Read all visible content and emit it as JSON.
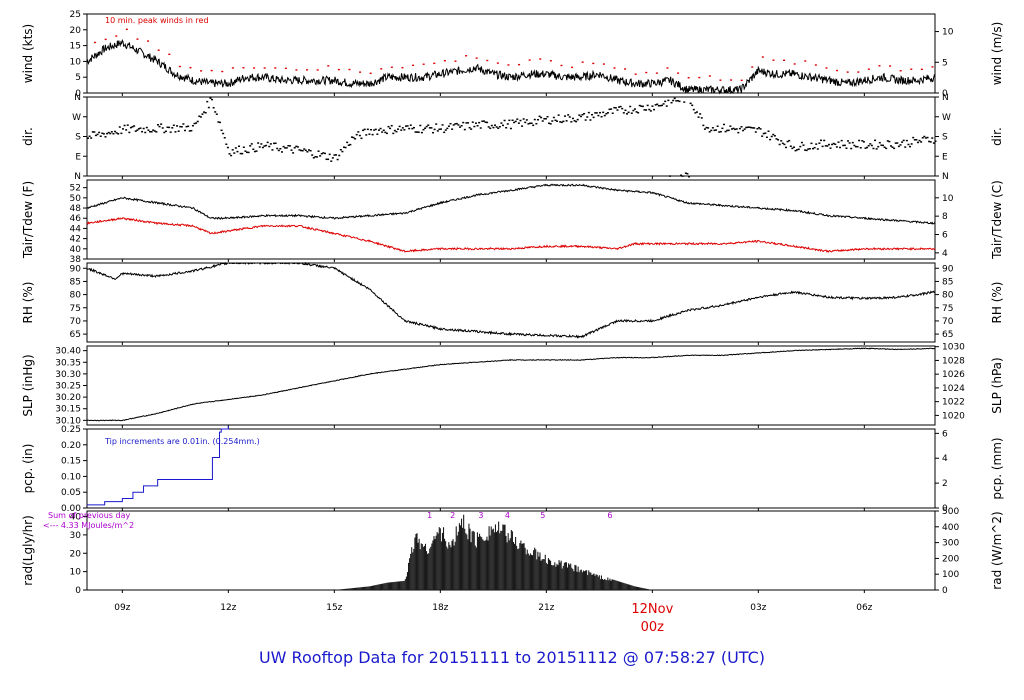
{
  "footer": {
    "title_prefix": "UW Rooftop Data for",
    "start": "20151111",
    "sep": "to",
    "end": "20151112",
    "at": "@",
    "time": "07:58:27",
    "tz": "(UTC)"
  },
  "colors": {
    "black": "#000000",
    "red": "#dd0000",
    "blue": "#1a1acc",
    "purple": "#aa00cc",
    "bar": "#1a1a1a"
  },
  "chart_data": [
    {
      "type": "line",
      "ylabel": "wind (kts)",
      "ylabel_right": "wind (m/s)",
      "ylim": [
        0,
        25
      ],
      "yticks": [
        "0",
        "5",
        "10",
        "15",
        "20",
        "25"
      ],
      "ylim_right": [
        0,
        12.86
      ],
      "yticks_right": [
        "0",
        "5",
        "10"
      ],
      "annotation": "10 min. peak winds in red",
      "series": [
        {
          "color": "black",
          "x": [
            0,
            0.5,
            1,
            1.5,
            2,
            2.5,
            3,
            3.5,
            4,
            4.5,
            5,
            5.5,
            6,
            6.5,
            7,
            7.5,
            8,
            8.5,
            9,
            9.5,
            10,
            10.5,
            11,
            11.5,
            12,
            12.5,
            13,
            13.5,
            14,
            14.5,
            15,
            15.5,
            16,
            16.5,
            17,
            17.5,
            18,
            18.5,
            19,
            19.5,
            20,
            20.5,
            21,
            21.5,
            22,
            22.5,
            23,
            23.5,
            24
          ],
          "values": [
            10,
            14,
            16,
            13,
            10,
            6,
            4,
            3,
            3,
            5,
            5,
            4,
            4,
            4,
            4,
            3,
            3,
            5,
            5,
            5,
            6,
            7,
            8,
            6,
            5,
            6,
            6,
            5,
            5,
            6,
            4,
            3,
            3,
            4,
            1,
            1,
            1,
            1,
            7,
            6,
            6,
            5,
            4,
            3,
            4,
            5,
            4,
            4,
            5
          ]
        }
      ],
      "peak_color": "red"
    },
    {
      "type": "scatter",
      "ylabel": "dir.",
      "ylabel_right": "dir.",
      "ylim": [
        0,
        360
      ],
      "yticks": [
        "N",
        "E",
        "S",
        "W",
        "N"
      ],
      "yticks_right": [
        "N",
        "E",
        "S",
        "W",
        "N"
      ],
      "series": [
        {
          "color": "black",
          "x": [
            0,
            1,
            2,
            3,
            3.5,
            4,
            5,
            6,
            7,
            7.5,
            8,
            9,
            10,
            11,
            12,
            13,
            14,
            15,
            16,
            16.5,
            17,
            17.5,
            18,
            19,
            20,
            21,
            22,
            23,
            24
          ],
          "values": [
            180,
            215,
            220,
            225,
            355,
            115,
            140,
            120,
            85,
            175,
            210,
            220,
            220,
            235,
            240,
            260,
            270,
            300,
            320,
            345,
            360,
            225,
            220,
            210,
            135,
            150,
            145,
            150,
            175
          ]
        }
      ]
    },
    {
      "type": "line",
      "ylabel": "Tair/Tdew (F)",
      "ylabel_right": "Tair/Tdew (C)",
      "ylim": [
        38,
        53.5
      ],
      "yticks": [
        "38",
        "40",
        "42",
        "44",
        "46",
        "48",
        "50",
        "52"
      ],
      "ylim_right": [
        3.33,
        11.94
      ],
      "yticks_right": [
        "4",
        "6",
        "8",
        "10"
      ],
      "series": [
        {
          "color": "black",
          "x": [
            0,
            1,
            2,
            3,
            3.5,
            4,
            5,
            6,
            7,
            8,
            9,
            10,
            11,
            12,
            13,
            14,
            15,
            16,
            17,
            18,
            19,
            20,
            21,
            22,
            23,
            24
          ],
          "values": [
            48,
            50,
            49,
            48,
            46,
            46,
            46.5,
            46.5,
            46,
            46.5,
            47,
            49,
            50.5,
            51.5,
            52.5,
            52.5,
            51.5,
            51,
            49,
            48.5,
            48,
            47.5,
            46.5,
            46,
            45.5,
            45
          ]
        },
        {
          "color": "red",
          "x": [
            0,
            1,
            2,
            3,
            3.5,
            4,
            5,
            6,
            7,
            8,
            9,
            10,
            11,
            12,
            13,
            14,
            15,
            15.5,
            16,
            17,
            18,
            19,
            20,
            21,
            22,
            23,
            24
          ],
          "values": [
            45,
            46,
            45,
            44.5,
            43,
            43.5,
            44.5,
            44.5,
            43,
            41.5,
            39.5,
            40,
            40,
            40,
            40.5,
            40.5,
            40,
            41,
            41,
            41,
            41,
            41.5,
            40.5,
            39.5,
            40,
            40,
            40
          ]
        }
      ]
    },
    {
      "type": "line",
      "ylabel": "RH (%)",
      "ylabel_right": "RH (%)",
      "ylim": [
        62,
        92
      ],
      "yticks": [
        "65",
        "70",
        "75",
        "80",
        "85",
        "90"
      ],
      "yticks_right": [
        "65",
        "70",
        "75",
        "80",
        "85",
        "90"
      ],
      "series": [
        {
          "color": "black",
          "x": [
            0,
            0.8,
            1,
            2,
            3,
            4,
            5,
            6,
            7,
            8,
            9,
            10,
            11,
            12,
            13,
            14,
            15,
            16,
            17,
            18,
            19,
            20,
            21,
            22,
            23,
            24
          ],
          "values": [
            90,
            86,
            88,
            87,
            89,
            92,
            92,
            92,
            90,
            82,
            70,
            67,
            66,
            65,
            64.5,
            64,
            70,
            70,
            74,
            76,
            79,
            81,
            79,
            78.5,
            79,
            81
          ]
        }
      ]
    },
    {
      "type": "line",
      "ylabel": "SLP (inHg)",
      "ylabel_right": "SLP (hPa)",
      "ylim": [
        30.08,
        30.42
      ],
      "yticks": [
        "30.10",
        "30.15",
        "30.20",
        "30.25",
        "30.30",
        "30.35",
        "30.40"
      ],
      "ylim_right": [
        1018.6,
        1030.1
      ],
      "yticks_right": [
        "1020",
        "1022",
        "1024",
        "1026",
        "1028",
        "1030"
      ],
      "series": [
        {
          "color": "black",
          "x": [
            0,
            1,
            2,
            3,
            4,
            5,
            6,
            7,
            8,
            9,
            10,
            11,
            12,
            13,
            14,
            15,
            16,
            17,
            18,
            19,
            20,
            21,
            22,
            23,
            24
          ],
          "values": [
            30.1,
            30.1,
            30.13,
            30.17,
            30.19,
            30.21,
            30.24,
            30.27,
            30.3,
            30.32,
            30.34,
            30.35,
            30.36,
            30.36,
            30.36,
            30.37,
            30.37,
            30.38,
            30.38,
            30.39,
            30.4,
            30.405,
            30.41,
            30.405,
            30.41
          ]
        }
      ]
    },
    {
      "type": "line",
      "ylabel": "pcp. (in)",
      "ylabel_right": "pcp. (mm)",
      "ylim": [
        0,
        0.25
      ],
      "yticks": [
        "0.00",
        "0.05",
        "0.10",
        "0.15",
        "0.20",
        "0.25"
      ],
      "ylim_right": [
        0,
        6.35
      ],
      "yticks_right": [
        "0",
        "2",
        "4",
        "6"
      ],
      "annotation": "Tip increments are 0.01in. (0.254mm.)",
      "series": [
        {
          "color": "blue",
          "x": [
            0,
            0.5,
            1,
            1.3,
            1.6,
            2,
            3.5,
            3.55,
            3.75,
            3.8,
            4.0
          ],
          "values": [
            0.01,
            0.02,
            0.03,
            0.05,
            0.07,
            0.09,
            0.09,
            0.16,
            0.24,
            0.25,
            0.26
          ]
        }
      ]
    },
    {
      "type": "area",
      "ylabel": "rad(Lgly/hr)",
      "ylabel_right": "rad (W/m^2)",
      "ylim": [
        0,
        43
      ],
      "yticks": [
        "0",
        "10",
        "20",
        "30",
        "40"
      ],
      "ylim_right": [
        0,
        500
      ],
      "yticks_right": [
        "0",
        "100",
        "200",
        "300",
        "400",
        "500"
      ],
      "annotation_line1": "Sum of previous day",
      "annotation_line2": "<--- 4.33 MJoules/m^2",
      "markers": [
        "1",
        "2",
        "3",
        "4",
        "5",
        "6"
      ],
      "marker_x": [
        9.7,
        10.35,
        11.15,
        11.9,
        12.9,
        14.8
      ],
      "series": [
        {
          "color": "bar",
          "x": [
            7,
            8,
            8.5,
            9,
            9.3,
            9.6,
            10,
            10.3,
            10.6,
            11,
            11.5,
            12,
            12.5,
            13,
            13.5,
            14,
            14.5,
            15,
            15.5,
            16
          ],
          "values": [
            0,
            2,
            4,
            5,
            33,
            24,
            36,
            25,
            42,
            30,
            38,
            32,
            24,
            18,
            15,
            12,
            8,
            5,
            2,
            0
          ]
        }
      ]
    }
  ],
  "xaxis": {
    "range_hours": [
      0,
      24
    ],
    "tick_labels": [
      "09z",
      "12z",
      "15z",
      "18z",
      "21z",
      "12Nov",
      "03z",
      "06z"
    ],
    "tick_hours": [
      1,
      4,
      7,
      10,
      13,
      16,
      19,
      22
    ],
    "day_label": "00z"
  }
}
